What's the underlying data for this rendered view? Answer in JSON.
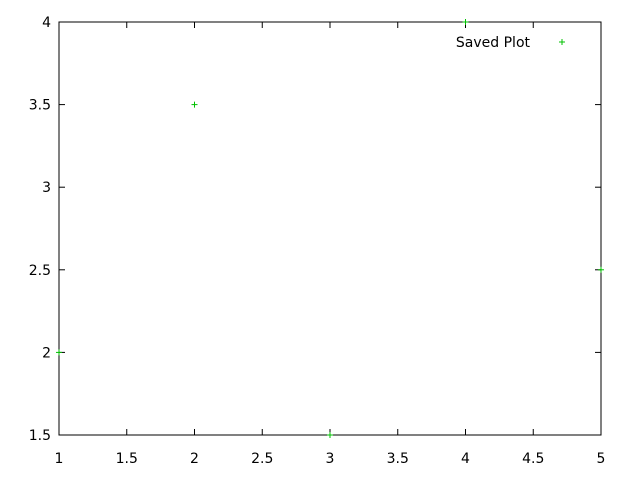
{
  "chart_data": {
    "type": "scatter",
    "title": "",
    "xlabel": "",
    "ylabel": "",
    "xlim": [
      1,
      5
    ],
    "ylim": [
      1.5,
      4
    ],
    "x_ticks": [
      1,
      1.5,
      2,
      2.5,
      3,
      3.5,
      4,
      4.5,
      5
    ],
    "x_tick_labels": [
      "1",
      "1.5",
      "2",
      "2.5",
      "3",
      "3.5",
      "4",
      "4.5",
      "5"
    ],
    "y_ticks": [
      1.5,
      2,
      2.5,
      3,
      3.5,
      4
    ],
    "y_tick_labels": [
      "1.5",
      "2",
      "2.5",
      "3",
      "3.5",
      "4"
    ],
    "grid": false,
    "legend_position": "top-right",
    "series": [
      {
        "name": "Saved Plot",
        "marker": "plus",
        "color": "#00c000",
        "x": [
          1,
          2,
          3,
          4,
          5
        ],
        "y": [
          2,
          3.5,
          1.5,
          4,
          2.5
        ]
      }
    ]
  }
}
